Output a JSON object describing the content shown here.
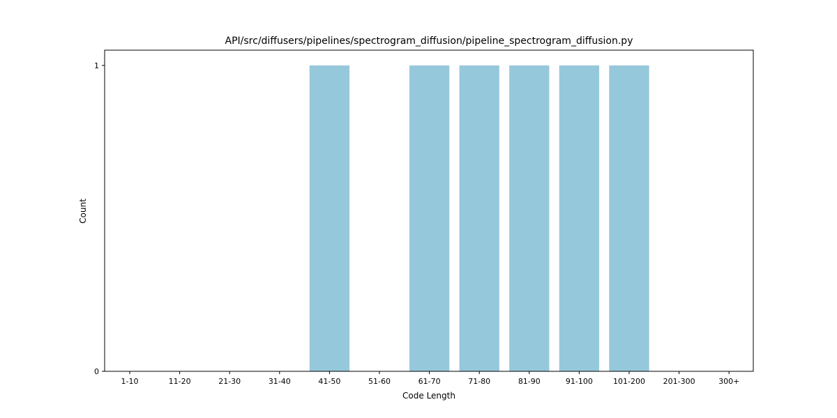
{
  "chart_data": {
    "type": "bar",
    "title": "API/src/diffusers/pipelines/spectrogram_diffusion/pipeline_spectrogram_diffusion.py",
    "xlabel": "Code Length",
    "ylabel": "Count",
    "categories": [
      "1-10",
      "11-20",
      "21-30",
      "31-40",
      "41-50",
      "51-60",
      "61-70",
      "71-80",
      "81-90",
      "91-100",
      "101-200",
      "201-300",
      "300+"
    ],
    "values": [
      0,
      0,
      0,
      0,
      1,
      0,
      1,
      1,
      1,
      1,
      1,
      0,
      0
    ],
    "ylim": [
      0,
      1.05
    ],
    "yticks": [
      0,
      1
    ],
    "grid": false,
    "bar_color": "#96c8db"
  }
}
